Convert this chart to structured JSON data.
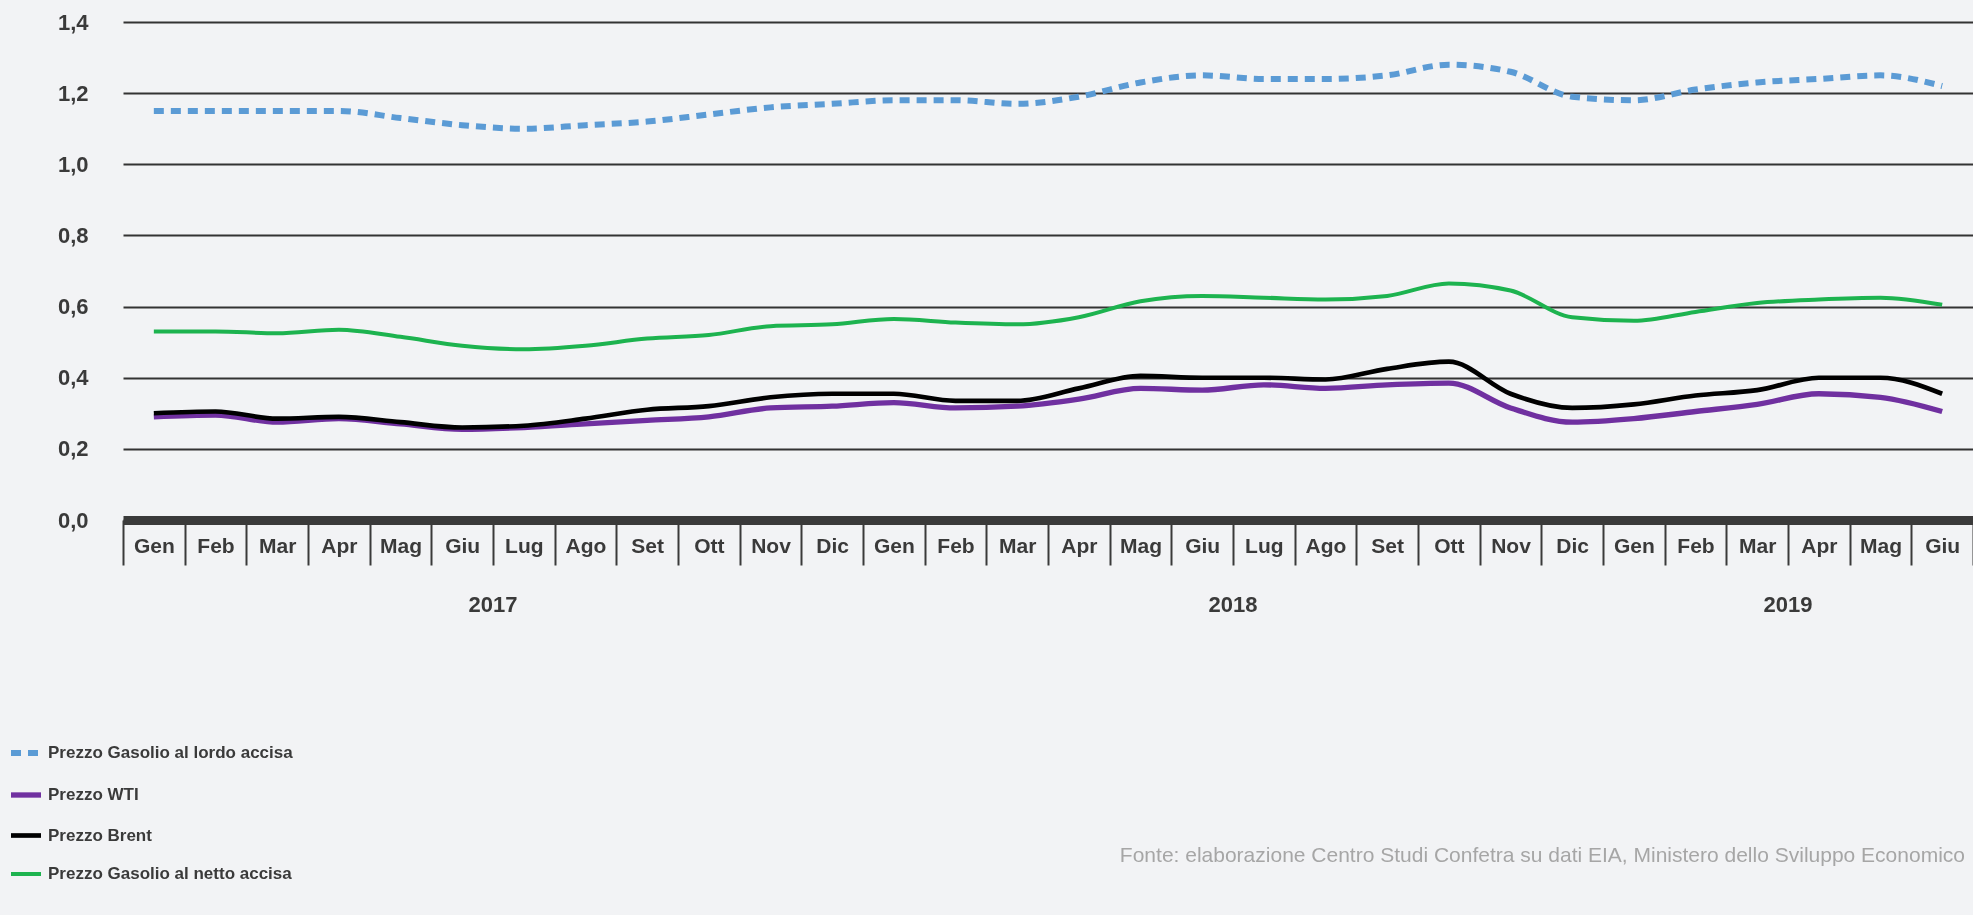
{
  "chart_data": {
    "type": "line",
    "categories": [
      "Gen",
      "Feb",
      "Mar",
      "Apr",
      "Mag",
      "Giu",
      "Lug",
      "Ago",
      "Set",
      "Ott",
      "Nov",
      "Dic",
      "Gen",
      "Feb",
      "Mar",
      "Apr",
      "Mag",
      "Giu",
      "Lug",
      "Ago",
      "Set",
      "Ott",
      "Nov",
      "Dic",
      "Gen",
      "Feb",
      "Mar",
      "Apr",
      "Mag",
      "Giu"
    ],
    "series": [
      {
        "name": "Prezzo Gasolio al lordo accisa",
        "color": "#5b9bd5",
        "line_style": "dashed",
        "values": [
          1.15,
          1.15,
          1.15,
          1.15,
          1.13,
          1.11,
          1.1,
          1.11,
          1.12,
          1.14,
          1.16,
          1.17,
          1.18,
          1.18,
          1.17,
          1.19,
          1.23,
          1.25,
          1.24,
          1.24,
          1.25,
          1.28,
          1.26,
          1.19,
          1.18,
          1.21,
          1.23,
          1.24,
          1.25,
          1.22
        ]
      },
      {
        "name": "Prezzo WTI",
        "color": "#7030a0",
        "line_style": "solid",
        "values": [
          0.29,
          0.295,
          0.275,
          0.285,
          0.27,
          0.255,
          0.26,
          0.27,
          0.28,
          0.29,
          0.315,
          0.32,
          0.33,
          0.315,
          0.32,
          0.34,
          0.37,
          0.365,
          0.38,
          0.37,
          0.38,
          0.385,
          0.315,
          0.275,
          0.285,
          0.305,
          0.325,
          0.355,
          0.345,
          0.305
        ]
      },
      {
        "name": "Prezzo Brent",
        "color": "#000000",
        "line_style": "solid",
        "values": [
          0.3,
          0.305,
          0.285,
          0.29,
          0.275,
          0.26,
          0.265,
          0.285,
          0.31,
          0.32,
          0.345,
          0.355,
          0.355,
          0.335,
          0.335,
          0.37,
          0.405,
          0.4,
          0.4,
          0.395,
          0.425,
          0.445,
          0.355,
          0.315,
          0.325,
          0.35,
          0.365,
          0.4,
          0.4,
          0.355
        ]
      },
      {
        "name": "Prezzo Gasolio al netto accisa",
        "color": "#1db34f",
        "line_style": "solid",
        "values": [
          0.53,
          0.53,
          0.525,
          0.535,
          0.515,
          0.49,
          0.48,
          0.49,
          0.51,
          0.52,
          0.545,
          0.55,
          0.565,
          0.555,
          0.55,
          0.57,
          0.615,
          0.63,
          0.625,
          0.62,
          0.63,
          0.665,
          0.645,
          0.57,
          0.56,
          0.585,
          0.61,
          0.62,
          0.625,
          0.605
        ]
      }
    ],
    "ylim": [
      0,
      1.4
    ],
    "yticks": [
      {
        "value": 0,
        "label": "0,0"
      },
      {
        "value": 0.2,
        "label": "0,2"
      },
      {
        "value": 0.4,
        "label": "0,4"
      },
      {
        "value": 0.6,
        "label": "0,6"
      },
      {
        "value": 0.8,
        "label": "0,8"
      },
      {
        "value": 1.0,
        "label": "1,0"
      },
      {
        "value": 1.2,
        "label": "1,2"
      },
      {
        "value": 1.4,
        "label": "1,4"
      }
    ],
    "grid": "y",
    "legend": "bottom left",
    "annotations": [
      "2017",
      "2018",
      "2019",
      "Fonte: elaborazione Centro Studi Confetra su dati EIA, Ministero dello Sviluppo Economico"
    ]
  }
}
